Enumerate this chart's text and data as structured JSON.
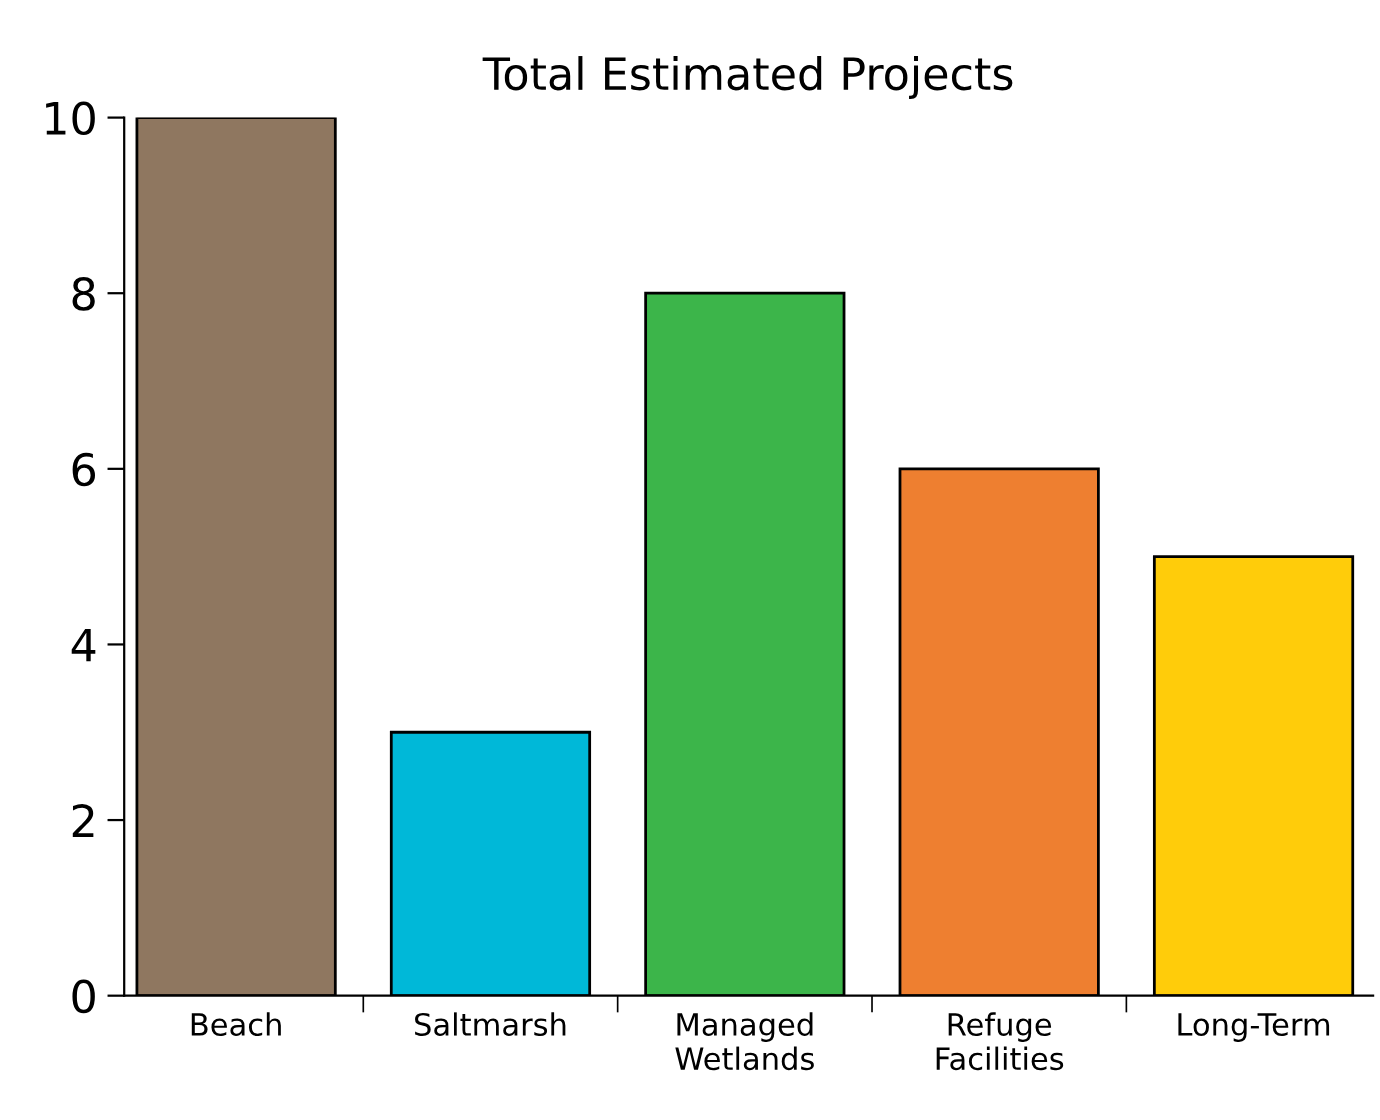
{
  "chart_data": {
    "type": "bar",
    "title": "Total Estimated Projects",
    "categories": [
      "Beach",
      "Saltmarsh",
      "Managed\nWetlands",
      "Refuge\nFacilities",
      "Long-Term"
    ],
    "values": [
      10,
      3,
      8,
      6,
      5
    ],
    "colors": [
      "#8f7760",
      "#00b8d8",
      "#3cb54a",
      "#ee7f30",
      "#ffcc0a"
    ],
    "ylim": [
      0,
      10
    ],
    "yticks": [
      0,
      2,
      4,
      6,
      8,
      10
    ],
    "grid": false,
    "legend": false
  }
}
